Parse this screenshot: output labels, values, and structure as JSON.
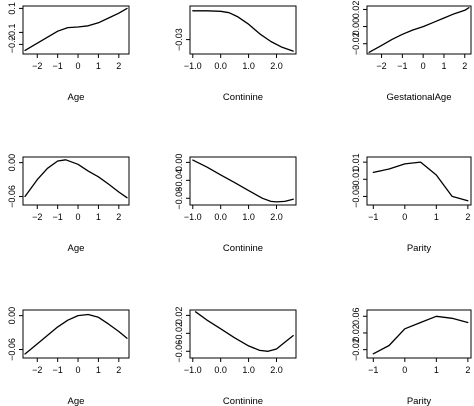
{
  "chart_data": [
    {
      "type": "line",
      "xlabel": "Age",
      "xlim": [
        -2.7,
        2.5
      ],
      "ylim": [
        -0.28,
        0.12
      ],
      "xticks": [
        -2,
        -1,
        0,
        1,
        2
      ],
      "xtick_labels": [
        "−2",
        "−1",
        "0",
        "1",
        "2"
      ],
      "yticks": [
        -0.2,
        -0.1,
        0.1
      ],
      "ytick_labels": [
        "−0.2",
        "−0.1",
        "0.1"
      ],
      "x": [
        -2.6,
        -2.0,
        -1.5,
        -1.0,
        -0.5,
        0.0,
        0.5,
        1.0,
        1.5,
        2.0,
        2.4
      ],
      "y": [
        -0.25,
        -0.19,
        -0.14,
        -0.09,
        -0.06,
        -0.055,
        -0.045,
        -0.02,
        0.02,
        0.06,
        0.1
      ]
    },
    {
      "type": "line",
      "xlabel": "Continine",
      "xlim": [
        -1.1,
        2.7
      ],
      "ylim": [
        -0.045,
        0.005
      ],
      "xticks": [
        -1.0,
        0.0,
        1.0,
        2.0
      ],
      "xtick_labels": [
        "−1.0",
        "0.0",
        "1.0",
        "2.0"
      ],
      "yticks": [
        -0.03
      ],
      "ytick_labels": [
        "−0.03"
      ],
      "x": [
        -1.0,
        -0.5,
        0.0,
        0.3,
        0.6,
        1.0,
        1.4,
        1.8,
        2.2,
        2.6
      ],
      "y": [
        0.0,
        0.0,
        -0.0005,
        -0.002,
        -0.006,
        -0.014,
        -0.024,
        -0.032,
        -0.038,
        -0.042
      ]
    },
    {
      "type": "line",
      "xlabel": "GestationalAge",
      "xlim": [
        -2.7,
        2.3
      ],
      "ylim": [
        -0.032,
        0.024
      ],
      "xticks": [
        -2,
        -1,
        0,
        1,
        2
      ],
      "xtick_labels": [
        "−2",
        "−1",
        "0",
        "1",
        "2"
      ],
      "yticks": [
        -0.02,
        0.0,
        0.02
      ],
      "ytick_labels": [
        "−0.02",
        "0.00",
        "0.02"
      ],
      "x": [
        -2.6,
        -2.0,
        -1.5,
        -1.0,
        -0.5,
        0.0,
        0.5,
        1.0,
        1.5,
        2.0,
        2.2
      ],
      "y": [
        -0.03,
        -0.022,
        -0.015,
        -0.009,
        -0.004,
        0.0,
        0.005,
        0.01,
        0.015,
        0.019,
        0.022
      ]
    },
    {
      "type": "line",
      "xlabel": "Age",
      "xlim": [
        -2.7,
        2.5
      ],
      "ylim": [
        -0.075,
        0.01
      ],
      "xticks": [
        -2,
        -1,
        0,
        1,
        2
      ],
      "xtick_labels": [
        "−2",
        "−1",
        "0",
        "1",
        "2"
      ],
      "yticks": [
        -0.06,
        0.0
      ],
      "ytick_labels": [
        "−0.06",
        "0.00"
      ],
      "x": [
        -2.6,
        -2.0,
        -1.5,
        -1.0,
        -0.6,
        0.0,
        0.5,
        1.0,
        1.5,
        2.0,
        2.4
      ],
      "y": [
        -0.06,
        -0.03,
        -0.01,
        0.003,
        0.005,
        -0.003,
        -0.015,
        -0.025,
        -0.038,
        -0.052,
        -0.062
      ]
    },
    {
      "type": "line",
      "xlabel": "Continine",
      "xlim": [
        -1.1,
        2.7
      ],
      "ylim": [
        -0.095,
        0.012
      ],
      "xticks": [
        -1.0,
        0.0,
        1.0,
        2.0
      ],
      "xtick_labels": [
        "−1.0",
        "0.0",
        "1.0",
        "2.0"
      ],
      "yticks": [
        -0.08,
        -0.04,
        0.0
      ],
      "ytick_labels": [
        "−0.08",
        "−0.04",
        "0.00"
      ],
      "x": [
        -1.0,
        -0.5,
        0.0,
        0.5,
        1.0,
        1.5,
        1.8,
        2.0,
        2.3,
        2.6
      ],
      "y": [
        0.005,
        -0.01,
        -0.028,
        -0.045,
        -0.063,
        -0.08,
        -0.087,
        -0.088,
        -0.087,
        -0.082
      ]
    },
    {
      "type": "line",
      "xlabel": "Parity",
      "xlim": [
        -1.2,
        2.1
      ],
      "ylim": [
        -0.04,
        0.016
      ],
      "xticks": [
        -1,
        0,
        1,
        2
      ],
      "xtick_labels": [
        "−1",
        "0",
        "1",
        "2"
      ],
      "yticks": [
        -0.03,
        -0.01,
        0.01
      ],
      "ytick_labels": [
        "−0.03",
        "−0.01",
        "0.01"
      ],
      "x": [
        -1.0,
        -0.5,
        0.0,
        0.5,
        1.0,
        1.5,
        2.0
      ],
      "y": [
        -0.002,
        0.002,
        0.008,
        0.01,
        -0.005,
        -0.03,
        -0.035
      ]
    },
    {
      "type": "line",
      "xlabel": "Age",
      "xlim": [
        -2.7,
        2.5
      ],
      "ylim": [
        -0.075,
        0.01
      ],
      "xticks": [
        -2,
        -1,
        0,
        1,
        2
      ],
      "xtick_labels": [
        "−2",
        "−1",
        "0",
        "1",
        "2"
      ],
      "yticks": [
        -0.06,
        0.0
      ],
      "ytick_labels": [
        "−0.06",
        "0.00"
      ],
      "x": [
        -2.6,
        -2.0,
        -1.5,
        -1.0,
        -0.5,
        0.0,
        0.5,
        1.0,
        1.5,
        2.0,
        2.4
      ],
      "y": [
        -0.068,
        -0.05,
        -0.035,
        -0.02,
        -0.008,
        0.0,
        0.002,
        -0.003,
        -0.015,
        -0.028,
        -0.04
      ]
    },
    {
      "type": "line",
      "xlabel": "Continine",
      "xlim": [
        -1.1,
        2.7
      ],
      "ylim": [
        -0.075,
        0.032
      ],
      "xticks": [
        -1.0,
        0.0,
        1.0,
        2.0
      ],
      "xtick_labels": [
        "−1.0",
        "0.0",
        "1.0",
        "2.0"
      ],
      "yticks": [
        -0.06,
        -0.02,
        0.02
      ],
      "ytick_labels": [
        "−0.06",
        "−0.02",
        "0.02"
      ],
      "x": [
        -0.9,
        -0.5,
        0.0,
        0.5,
        1.0,
        1.4,
        1.7,
        2.0,
        2.3,
        2.6
      ],
      "y": [
        0.028,
        0.01,
        -0.01,
        -0.03,
        -0.048,
        -0.058,
        -0.06,
        -0.055,
        -0.04,
        -0.025
      ]
    },
    {
      "type": "line",
      "xlabel": "Parity",
      "xlim": [
        -1.2,
        2.1
      ],
      "ylim": [
        -0.04,
        0.075
      ],
      "xticks": [
        -1,
        0,
        1,
        2
      ],
      "xtick_labels": [
        "−1",
        "0",
        "1",
        "2"
      ],
      "yticks": [
        -0.02,
        0.02,
        0.06
      ],
      "ytick_labels": [
        "−0.02",
        "0.02",
        "0.06"
      ],
      "x": [
        -1.0,
        -0.5,
        0.0,
        0.5,
        1.0,
        1.5,
        2.0
      ],
      "y": [
        -0.03,
        -0.01,
        0.03,
        0.045,
        0.06,
        0.055,
        0.045
      ]
    }
  ]
}
